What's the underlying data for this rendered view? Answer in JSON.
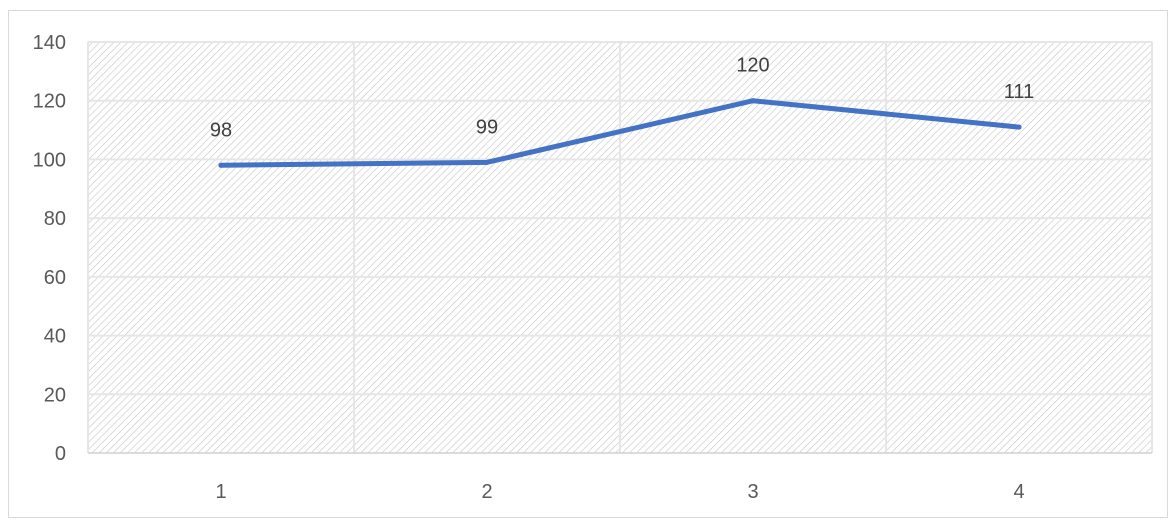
{
  "chart_data": {
    "type": "line",
    "categories": [
      "1",
      "2",
      "3",
      "4"
    ],
    "series": [
      {
        "values": [
          98,
          99,
          120,
          111
        ],
        "color": "#4472C4"
      }
    ],
    "data_labels": [
      "98",
      "99",
      "120",
      "111"
    ],
    "y_ticks": [
      "0",
      "20",
      "40",
      "60",
      "80",
      "100",
      "120",
      "140"
    ],
    "ylim": [
      0,
      140
    ],
    "grid": true,
    "plot_fill": "hatched",
    "title": "",
    "xlabel": "",
    "ylabel": ""
  }
}
